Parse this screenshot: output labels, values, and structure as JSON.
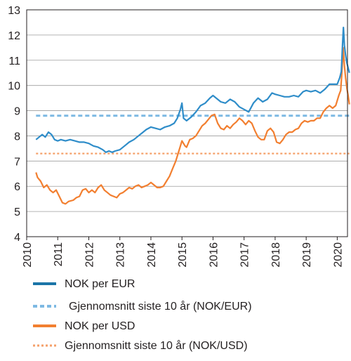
{
  "chart_data": {
    "type": "line",
    "title": "",
    "xlabel": "",
    "ylabel": "",
    "ylim": [
      4,
      13
    ],
    "yticks": [
      4,
      5,
      6,
      7,
      8,
      9,
      10,
      11,
      12,
      13
    ],
    "xlim": [
      2010,
      2020.33
    ],
    "xticks": [
      "2010",
      "2011",
      "2012",
      "2013",
      "2014",
      "2015",
      "2016",
      "2017",
      "2018",
      "2019",
      "2020"
    ],
    "grid": "horizontal",
    "legend_position": "bottom",
    "series": [
      {
        "name": "NOK per EUR",
        "color": "#2f8dc9",
        "style": "solid",
        "points": [
          [
            2010.3,
            7.85
          ],
          [
            2010.4,
            7.95
          ],
          [
            2010.5,
            8.05
          ],
          [
            2010.6,
            7.95
          ],
          [
            2010.7,
            8.15
          ],
          [
            2010.8,
            8.05
          ],
          [
            2010.9,
            7.85
          ],
          [
            2011.0,
            7.8
          ],
          [
            2011.1,
            7.85
          ],
          [
            2011.25,
            7.8
          ],
          [
            2011.4,
            7.85
          ],
          [
            2011.55,
            7.8
          ],
          [
            2011.7,
            7.75
          ],
          [
            2011.85,
            7.75
          ],
          [
            2012.0,
            7.7
          ],
          [
            2012.15,
            7.6
          ],
          [
            2012.3,
            7.55
          ],
          [
            2012.45,
            7.45
          ],
          [
            2012.55,
            7.35
          ],
          [
            2012.65,
            7.4
          ],
          [
            2012.75,
            7.35
          ],
          [
            2012.85,
            7.4
          ],
          [
            2013.0,
            7.45
          ],
          [
            2013.15,
            7.6
          ],
          [
            2013.3,
            7.75
          ],
          [
            2013.45,
            7.85
          ],
          [
            2013.55,
            7.95
          ],
          [
            2013.65,
            8.05
          ],
          [
            2013.75,
            8.15
          ],
          [
            2013.85,
            8.25
          ],
          [
            2014.0,
            8.35
          ],
          [
            2014.15,
            8.3
          ],
          [
            2014.3,
            8.25
          ],
          [
            2014.45,
            8.35
          ],
          [
            2014.6,
            8.4
          ],
          [
            2014.75,
            8.5
          ],
          [
            2014.85,
            8.7
          ],
          [
            2014.95,
            9.05
          ],
          [
            2015.0,
            9.3
          ],
          [
            2015.05,
            8.7
          ],
          [
            2015.15,
            8.6
          ],
          [
            2015.3,
            8.75
          ],
          [
            2015.45,
            8.95
          ],
          [
            2015.6,
            9.2
          ],
          [
            2015.75,
            9.3
          ],
          [
            2015.9,
            9.5
          ],
          [
            2016.0,
            9.6
          ],
          [
            2016.1,
            9.5
          ],
          [
            2016.25,
            9.35
          ],
          [
            2016.4,
            9.3
          ],
          [
            2016.55,
            9.45
          ],
          [
            2016.7,
            9.35
          ],
          [
            2016.85,
            9.15
          ],
          [
            2017.0,
            9.05
          ],
          [
            2017.15,
            8.95
          ],
          [
            2017.3,
            9.3
          ],
          [
            2017.45,
            9.5
          ],
          [
            2017.6,
            9.35
          ],
          [
            2017.75,
            9.45
          ],
          [
            2017.9,
            9.7
          ],
          [
            2018.0,
            9.65
          ],
          [
            2018.15,
            9.6
          ],
          [
            2018.3,
            9.55
          ],
          [
            2018.45,
            9.55
          ],
          [
            2018.6,
            9.6
          ],
          [
            2018.75,
            9.55
          ],
          [
            2018.9,
            9.75
          ],
          [
            2019.0,
            9.8
          ],
          [
            2019.15,
            9.75
          ],
          [
            2019.3,
            9.8
          ],
          [
            2019.45,
            9.7
          ],
          [
            2019.6,
            9.85
          ],
          [
            2019.75,
            10.05
          ],
          [
            2019.9,
            10.05
          ],
          [
            2020.0,
            10.05
          ],
          [
            2020.08,
            10.3
          ],
          [
            2020.13,
            10.55
          ],
          [
            2020.17,
            11.6
          ],
          [
            2020.2,
            12.3
          ],
          [
            2020.23,
            11.6
          ],
          [
            2020.27,
            11.2
          ],
          [
            2020.31,
            10.9
          ],
          [
            2020.35,
            10.7
          ],
          [
            2020.39,
            10.5
          ]
        ]
      },
      {
        "name": "Gjennomsnitt siste 10 år (NOK/EUR)",
        "color": "#7db9e3",
        "style": "dashed",
        "points": [
          [
            2010.3,
            8.8
          ],
          [
            2020.39,
            8.8
          ]
        ]
      },
      {
        "name": "NOK per USD",
        "color": "#f27f30",
        "style": "solid",
        "points": [
          [
            2010.3,
            6.55
          ],
          [
            2010.35,
            6.35
          ],
          [
            2010.45,
            6.2
          ],
          [
            2010.55,
            5.95
          ],
          [
            2010.65,
            6.05
          ],
          [
            2010.75,
            5.85
          ],
          [
            2010.85,
            5.75
          ],
          [
            2010.95,
            5.85
          ],
          [
            2011.05,
            5.6
          ],
          [
            2011.15,
            5.35
          ],
          [
            2011.25,
            5.3
          ],
          [
            2011.35,
            5.4
          ],
          [
            2011.5,
            5.45
          ],
          [
            2011.6,
            5.55
          ],
          [
            2011.7,
            5.6
          ],
          [
            2011.8,
            5.85
          ],
          [
            2011.9,
            5.9
          ],
          [
            2012.0,
            5.75
          ],
          [
            2012.1,
            5.85
          ],
          [
            2012.2,
            5.75
          ],
          [
            2012.3,
            5.95
          ],
          [
            2012.4,
            6.05
          ],
          [
            2012.5,
            5.85
          ],
          [
            2012.6,
            5.75
          ],
          [
            2012.7,
            5.65
          ],
          [
            2012.8,
            5.6
          ],
          [
            2012.9,
            5.55
          ],
          [
            2013.0,
            5.7
          ],
          [
            2013.1,
            5.75
          ],
          [
            2013.2,
            5.85
          ],
          [
            2013.3,
            5.95
          ],
          [
            2013.4,
            5.9
          ],
          [
            2013.5,
            6.0
          ],
          [
            2013.6,
            6.05
          ],
          [
            2013.7,
            5.95
          ],
          [
            2013.8,
            6.0
          ],
          [
            2013.9,
            6.05
          ],
          [
            2014.0,
            6.15
          ],
          [
            2014.1,
            6.05
          ],
          [
            2014.2,
            5.95
          ],
          [
            2014.3,
            5.95
          ],
          [
            2014.4,
            6.0
          ],
          [
            2014.5,
            6.2
          ],
          [
            2014.6,
            6.4
          ],
          [
            2014.7,
            6.7
          ],
          [
            2014.8,
            7.0
          ],
          [
            2014.9,
            7.4
          ],
          [
            2015.0,
            7.8
          ],
          [
            2015.1,
            7.6
          ],
          [
            2015.15,
            7.55
          ],
          [
            2015.25,
            7.85
          ],
          [
            2015.35,
            7.9
          ],
          [
            2015.45,
            8.0
          ],
          [
            2015.55,
            8.2
          ],
          [
            2015.65,
            8.4
          ],
          [
            2015.75,
            8.5
          ],
          [
            2015.85,
            8.65
          ],
          [
            2015.95,
            8.8
          ],
          [
            2016.05,
            8.85
          ],
          [
            2016.15,
            8.5
          ],
          [
            2016.25,
            8.3
          ],
          [
            2016.35,
            8.25
          ],
          [
            2016.45,
            8.4
          ],
          [
            2016.55,
            8.3
          ],
          [
            2016.65,
            8.45
          ],
          [
            2016.75,
            8.55
          ],
          [
            2016.85,
            8.7
          ],
          [
            2016.95,
            8.6
          ],
          [
            2017.05,
            8.45
          ],
          [
            2017.15,
            8.6
          ],
          [
            2017.25,
            8.5
          ],
          [
            2017.35,
            8.2
          ],
          [
            2017.45,
            7.95
          ],
          [
            2017.55,
            7.85
          ],
          [
            2017.65,
            7.85
          ],
          [
            2017.75,
            8.2
          ],
          [
            2017.85,
            8.3
          ],
          [
            2017.95,
            8.15
          ],
          [
            2018.05,
            7.75
          ],
          [
            2018.15,
            7.7
          ],
          [
            2018.25,
            7.85
          ],
          [
            2018.35,
            8.05
          ],
          [
            2018.45,
            8.15
          ],
          [
            2018.55,
            8.15
          ],
          [
            2018.65,
            8.25
          ],
          [
            2018.75,
            8.3
          ],
          [
            2018.85,
            8.5
          ],
          [
            2018.95,
            8.6
          ],
          [
            2019.05,
            8.55
          ],
          [
            2019.15,
            8.6
          ],
          [
            2019.25,
            8.6
          ],
          [
            2019.35,
            8.7
          ],
          [
            2019.45,
            8.7
          ],
          [
            2019.55,
            8.95
          ],
          [
            2019.65,
            9.1
          ],
          [
            2019.75,
            9.2
          ],
          [
            2019.85,
            9.1
          ],
          [
            2019.95,
            9.2
          ],
          [
            2020.05,
            9.6
          ],
          [
            2020.11,
            9.8
          ],
          [
            2020.15,
            10.5
          ],
          [
            2020.19,
            11.5
          ],
          [
            2020.23,
            10.8
          ],
          [
            2020.27,
            10.3
          ],
          [
            2020.31,
            9.9
          ],
          [
            2020.35,
            9.6
          ],
          [
            2020.39,
            9.25
          ]
        ]
      },
      {
        "name": "Gjennomsnitt siste 10 år (NOK/USD)",
        "color": "#f5a06a",
        "style": "dotted",
        "points": [
          [
            2010.3,
            7.3
          ],
          [
            2020.39,
            7.3
          ]
        ]
      }
    ]
  }
}
